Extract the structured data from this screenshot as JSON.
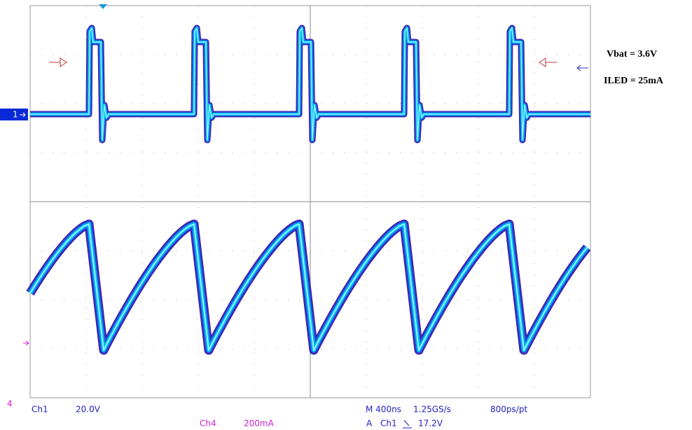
{
  "annotations": {
    "vbat": "Vbat = 3.6V",
    "iled": "ILED = 25mA"
  },
  "channel_markers": {
    "ch1": "1",
    "ch4": "4"
  },
  "readout": {
    "ch1_label": "Ch1",
    "ch1_scale": "20.0V",
    "ch4_label": "Ch4",
    "ch4_scale": "200mA",
    "timebase": "M 400ns",
    "sample_rate": "1.25GS/s",
    "resolution": "800ps/pt",
    "trigger_mode": "A",
    "trigger_source": "Ch1",
    "trigger_level": "17.2V"
  }
}
